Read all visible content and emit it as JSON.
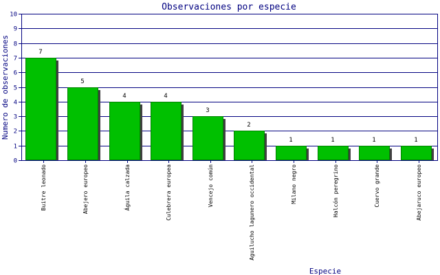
{
  "chart_data": {
    "type": "bar",
    "title": "Observaciones por especie",
    "xlabel": "Especie",
    "ylabel": "Numero de observaciones",
    "ylim": [
      0,
      10
    ],
    "yticks": [
      0,
      1,
      2,
      3,
      4,
      5,
      6,
      7,
      8,
      9,
      10
    ],
    "grid": true,
    "categories": [
      "Buitre leonado",
      "Abejero europeo",
      "Águila calzada",
      "Culebrera europea",
      "Vencejo común",
      "Aguilucho lagunero occidental",
      "Milano negro",
      "Halcón peregrino",
      "Cuervo grande",
      "Abejaruco europeo"
    ],
    "values": [
      7,
      5,
      4,
      4,
      3,
      2,
      1,
      1,
      1,
      1
    ],
    "colors": {
      "bar": "#00c000",
      "bar_edge": "#008000",
      "shadow": "#404040",
      "grid": "#000080",
      "axis": "#000080",
      "text": "#000080",
      "label": "#000000"
    }
  }
}
